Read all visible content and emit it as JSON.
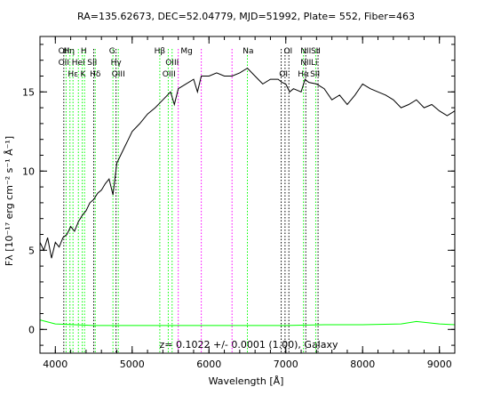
{
  "chart_data": {
    "type": "line",
    "title": "RA=135.62673, DEC=52.04779, MJD=51992, Plate= 552, Fiber=463",
    "xlabel": "Wavelength [Å]",
    "ylabel": "Fλ [10⁻¹⁷ erg cm⁻² s⁻¹ Å⁻¹]",
    "xlim": [
      3800,
      9200
    ],
    "ylim": [
      -1.5,
      18.5
    ],
    "x_ticks": [
      4000,
      5000,
      6000,
      7000,
      8000,
      9000
    ],
    "y_ticks": [
      0,
      5,
      10,
      15
    ],
    "annotation": "z= 0.1022 +/- 0.0001 (1.00), Galaxy",
    "series": [
      {
        "name": "",
        "color": "#000000",
        "x": [
          3800,
          3850,
          3900,
          3950,
          4000,
          4050,
          4100,
          4150,
          4200,
          4250,
          4300,
          4350,
          4400,
          4450,
          4500,
          4550,
          4600,
          4650,
          4700,
          4750,
          4800,
          4850,
          4900,
          4950,
          5000,
          5100,
          5200,
          5300,
          5400,
          5500,
          5550,
          5600,
          5700,
          5800,
          5850,
          5900,
          6000,
          6100,
          6200,
          6300,
          6400,
          6500,
          6600,
          6700,
          6800,
          6900,
          6950,
          7000,
          7050,
          7100,
          7200,
          7250,
          7300,
          7400,
          7500,
          7600,
          7700,
          7800,
          7900,
          8000,
          8100,
          8200,
          8300,
          8400,
          8500,
          8600,
          8700,
          8800,
          8900,
          9000,
          9100,
          9200
        ],
        "values": [
          5.5,
          5.0,
          5.8,
          4.5,
          5.5,
          5.2,
          5.8,
          6.0,
          6.5,
          6.2,
          6.8,
          7.2,
          7.5,
          8.0,
          8.2,
          8.6,
          8.8,
          9.2,
          9.5,
          8.5,
          10.5,
          11.0,
          11.5,
          12.0,
          12.5,
          13.0,
          13.6,
          14.0,
          14.5,
          15.0,
          14.2,
          15.2,
          15.5,
          15.8,
          15.0,
          16.0,
          16.0,
          16.2,
          16.0,
          16.0,
          16.2,
          16.5,
          16.0,
          15.5,
          15.8,
          15.8,
          15.6,
          15.5,
          15.0,
          15.2,
          15.0,
          15.8,
          15.6,
          15.5,
          15.2,
          14.5,
          14.8,
          14.2,
          14.8,
          15.5,
          15.2,
          15.0,
          14.8,
          14.5,
          14.0,
          14.2,
          14.5,
          14.0,
          14.2,
          13.8,
          13.5,
          13.8
        ]
      },
      {
        "name": "",
        "color": "#00ff00",
        "x": [
          3800,
          4000,
          4500,
          5000,
          5500,
          6000,
          6500,
          7000,
          7500,
          8000,
          8500,
          8700,
          9000,
          9200
        ],
        "values": [
          0.6,
          0.35,
          0.25,
          0.25,
          0.25,
          0.25,
          0.25,
          0.25,
          0.3,
          0.3,
          0.35,
          0.5,
          0.35,
          0.3
        ]
      }
    ],
    "line_labels": [
      {
        "text": "OII",
        "x": 4110,
        "color": "#00ff00",
        "row": 1
      },
      {
        "text": "Hη",
        "x": 4180,
        "color": "#00ff00",
        "row": 1
      },
      {
        "text": "H",
        "x": 4370,
        "color": "#000000",
        "row": 1
      },
      {
        "text": "OII",
        "x": 4110,
        "color": "#00ff00",
        "row": 2
      },
      {
        "text": "HeI",
        "x": 4300,
        "color": "#00ff00",
        "row": 2
      },
      {
        "text": "SII",
        "x": 4480,
        "color": "#00ff00",
        "row": 2
      },
      {
        "text": "Hε",
        "x": 4230,
        "color": "#00ff00",
        "row": 3
      },
      {
        "text": "K",
        "x": 4360,
        "color": "#000000",
        "row": 3
      },
      {
        "text": "Hδ",
        "x": 4520,
        "color": "#00ff00",
        "row": 3
      },
      {
        "text": "G",
        "x": 4740,
        "color": "#000000",
        "row": 1
      },
      {
        "text": "Hγ",
        "x": 4790,
        "color": "#00ff00",
        "row": 2
      },
      {
        "text": "OIII",
        "x": 4820,
        "color": "#00ff00",
        "row": 3
      },
      {
        "text": "Hβ",
        "x": 5360,
        "color": "#00ff00",
        "row": 1
      },
      {
        "text": "OIII",
        "x": 5520,
        "color": "#00ff00",
        "row": 2
      },
      {
        "text": "OIII",
        "x": 5480,
        "color": "#00ff00",
        "row": 3
      },
      {
        "text": "Mg",
        "x": 5710,
        "color": "#000000",
        "row": 1
      },
      {
        "text": "Na",
        "x": 6510,
        "color": "#000000",
        "row": 1
      },
      {
        "text": "OI",
        "x": 7030,
        "color": "#000000",
        "row": 1
      },
      {
        "text": "OI",
        "x": 6970,
        "color": "#000000",
        "row": 3
      },
      {
        "text": "NII",
        "x": 7260,
        "color": "#00ff00",
        "row": 1
      },
      {
        "text": "SII",
        "x": 7390,
        "color": "#00ff00",
        "row": 1
      },
      {
        "text": "NII",
        "x": 7260,
        "color": "#00ff00",
        "row": 2
      },
      {
        "text": "Li",
        "x": 7370,
        "color": "#000000",
        "row": 2
      },
      {
        "text": "Hα",
        "x": 7230,
        "color": "#00ff00",
        "row": 3
      },
      {
        "text": "SII",
        "x": 7380,
        "color": "#00ff00",
        "row": 3
      }
    ],
    "vlines": [
      {
        "x": 4110,
        "color": "#000000"
      },
      {
        "x": 4140,
        "color": "#00ff00"
      },
      {
        "x": 4190,
        "color": "#00ff00"
      },
      {
        "x": 4230,
        "color": "#00ff00"
      },
      {
        "x": 4300,
        "color": "#00ff00"
      },
      {
        "x": 4350,
        "color": "#00ff00"
      },
      {
        "x": 4380,
        "color": "#00ff00"
      },
      {
        "x": 4500,
        "color": "#000000"
      },
      {
        "x": 4520,
        "color": "#00ff00"
      },
      {
        "x": 4750,
        "color": "#00ff00"
      },
      {
        "x": 4790,
        "color": "#000000"
      },
      {
        "x": 4820,
        "color": "#00ff00"
      },
      {
        "x": 5360,
        "color": "#00ff00"
      },
      {
        "x": 5470,
        "color": "#00ff00"
      },
      {
        "x": 5520,
        "color": "#00ff00"
      },
      {
        "x": 5600,
        "color": "#ff00ff"
      },
      {
        "x": 5900,
        "color": "#ff00ff"
      },
      {
        "x": 6300,
        "color": "#ff00ff"
      },
      {
        "x": 6500,
        "color": "#00ff00"
      },
      {
        "x": 6940,
        "color": "#000000"
      },
      {
        "x": 6990,
        "color": "#000000"
      },
      {
        "x": 7040,
        "color": "#000000"
      },
      {
        "x": 7230,
        "color": "#00ff00"
      },
      {
        "x": 7260,
        "color": "#000000"
      },
      {
        "x": 7390,
        "color": "#00ff00"
      },
      {
        "x": 7420,
        "color": "#000000"
      }
    ]
  }
}
